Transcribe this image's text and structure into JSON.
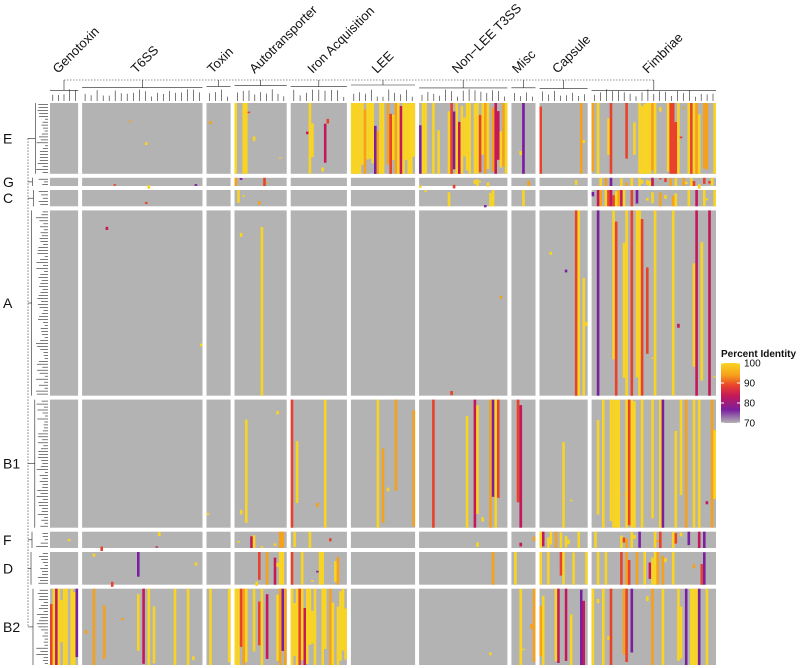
{
  "chart_data": {
    "type": "heatmap",
    "title": "",
    "xlabel": "",
    "ylabel": "",
    "column_groups": [
      {
        "name": "Genotoxin",
        "rel_width": 7
      },
      {
        "name": "T6SS",
        "rel_width": 30
      },
      {
        "name": "Toxin",
        "rel_width": 6
      },
      {
        "name": "Autotransporter",
        "rel_width": 13
      },
      {
        "name": "Iron Acquisition",
        "rel_width": 14
      },
      {
        "name": "LEE",
        "rel_width": 16
      },
      {
        "name": "Non−LEE T3SS",
        "rel_width": 22
      },
      {
        "name": "Misc",
        "rel_width": 6
      },
      {
        "name": "Capsule",
        "rel_width": 12
      },
      {
        "name": "Fimbriae",
        "rel_width": 31
      }
    ],
    "row_groups": [
      {
        "name": "E",
        "rel_height": 26
      },
      {
        "name": "G",
        "rel_height": 3
      },
      {
        "name": "C",
        "rel_height": 6
      },
      {
        "name": "A",
        "rel_height": 68
      },
      {
        "name": "B1",
        "rel_height": 47
      },
      {
        "name": "F",
        "rel_height": 6
      },
      {
        "name": "D",
        "rel_height": 12
      },
      {
        "name": "B2",
        "rel_height": 28
      }
    ],
    "legend": {
      "title": "Percent Identity",
      "ticks": [
        100,
        90,
        80,
        70
      ],
      "range": [
        70,
        100
      ],
      "colors": [
        "#b3b3b3",
        "#7a1fa0",
        "#c4185a",
        "#e8412c",
        "#f6a11a",
        "#f9d423"
      ]
    },
    "background_color": "#b3b3b3",
    "separator_color": "#ffffff",
    "density": {
      "E": {
        "LEE": 0.97,
        "Non−LEE T3SS": 0.75,
        "Iron Acquisition": 0.3,
        "Fimbriae": 0.6,
        "Autotransporter": 0.45,
        "Toxin": 0.3,
        "Misc": 0.4,
        "Capsule": 0.25,
        "T6SS": 0.08,
        "Genotoxin": 0.02
      },
      "G": {
        "Fimbriae": 0.5,
        "Autotransporter": 0.3,
        "Misc": 0.3,
        "Non−LEE T3SS": 0.2,
        "Capsule": 0.2,
        "T6SS": 0.1
      },
      "C": {
        "Fimbriae": 0.55,
        "Autotransporter": 0.3,
        "Misc": 0.3,
        "Non−LEE T3SS": 0.2,
        "Capsule": 0.2,
        "T6SS": 0.1
      },
      "A": {
        "Fimbriae": 0.55,
        "Capsule": 0.25,
        "Misc": 0.2,
        "Autotransporter": 0.3,
        "Iron Acquisition": 0.08,
        "Non−LEE T3SS": 0.06,
        "T6SS": 0.06,
        "LEE": 0.02
      },
      "B1": {
        "LEE": 0.35,
        "Non−LEE T3SS": 0.35,
        "Fimbriae": 0.55,
        "Autotransporter": 0.35,
        "Iron Acquisition": 0.2,
        "T6SS": 0.12,
        "Capsule": 0.2,
        "Misc": 0.2,
        "Toxin": 0.1
      },
      "F": {
        "Fimbriae": 0.5,
        "Iron Acquisition": 0.35,
        "Capsule": 0.35,
        "Autotransporter": 0.35,
        "T6SS": 0.15,
        "Misc": 0.25,
        "Non−LEE T3SS": 0.1,
        "Genotoxin": 0.2
      },
      "D": {
        "Fimbriae": 0.5,
        "Iron Acquisition": 0.4,
        "Capsule": 0.35,
        "Autotransporter": 0.35,
        "T6SS": 0.15,
        "Misc": 0.25,
        "Non−LEE T3SS": 0.1
      },
      "B2": {
        "Genotoxin": 0.8,
        "T6SS": 0.35,
        "Iron Acquisition": 0.75,
        "Autotransporter": 0.6,
        "Toxin": 0.4,
        "Capsule": 0.55,
        "Fimbriae": 0.55,
        "Misc": 0.3,
        "Non−LEE T3SS": 0.03
      }
    }
  }
}
